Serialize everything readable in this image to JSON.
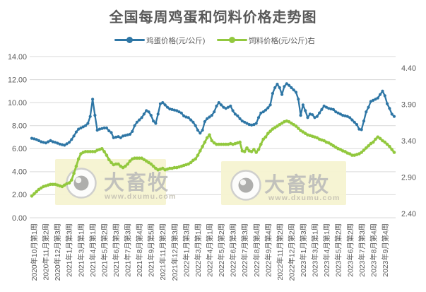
{
  "title": "全国每周鸡蛋和饲料价格走势图",
  "legend": {
    "egg_label": "鸡蛋价格(元/公斤)",
    "feed_label": "饲料价格(元/公斤)右"
  },
  "watermark": {
    "brand": "大畜牧",
    "url": "www.dxumu.com"
  },
  "colors": {
    "egg_line": "#2e76a5",
    "feed_line": "#92c83e",
    "grid": "#d9d9d9",
    "axis_text": "#595959",
    "watermark_box": "#f6f3d1",
    "watermark_text": "#bcbcba",
    "watermark_url": "#c6c2b4"
  },
  "chart_data": {
    "type": "line",
    "title": "全国每周鸡蛋和饲料价格走势图",
    "grid": "horizontal",
    "legend_position": "top",
    "left_axis": {
      "min": 0,
      "max": 14,
      "step": 2,
      "labels": [
        "0.00",
        "2.00",
        "4.00",
        "6.00",
        "8.00",
        "10.00",
        "12.00",
        "14.00"
      ]
    },
    "right_axis": {
      "min": 2.4,
      "max": 4.4,
      "step": 0.5,
      "labels": [
        "2.40",
        "2.90",
        "3.40",
        "3.90",
        "4.40"
      ]
    },
    "x_tick_labels": [
      "2020年10月第1周",
      "2020年11月第2周",
      "2020年12月第3周",
      "2021年1月第3周",
      "2021年3月第1周",
      "2021年4月第1周",
      "2021年5月第2周",
      "2021年6月第3周",
      "2021年7月第3周",
      "2021年8月第4周",
      "2021年9月第5周",
      "2021年11月第2周",
      "2021年12月第3周",
      "2022年1月第3周",
      "2022年3月第1周",
      "2022年4月第1周",
      "2022年5月第2周",
      "2022年6月第3周",
      "2022年7月第3周",
      "2022年8月第4周",
      "2022年9月第4周",
      "2022年11月第2周",
      "2022年12月第2周",
      "2023年1月第3周",
      "2023年3月第1周",
      "2023年4月第1周",
      "2023年5月第2周",
      "2023年6月第2周",
      "2023年7月第3周",
      "2023年8月第4周",
      "2023年9月第4周"
    ],
    "series": [
      {
        "name": "鸡蛋价格(元/公斤)",
        "axis": "left",
        "color": "#2e76a5",
        "values": [
          6.9,
          6.85,
          6.8,
          6.7,
          6.6,
          6.55,
          6.5,
          6.6,
          6.7,
          6.6,
          6.55,
          6.48,
          6.4,
          6.35,
          6.3,
          6.42,
          6.55,
          6.8,
          7.1,
          7.45,
          7.7,
          7.8,
          7.9,
          8.0,
          8.2,
          8.8,
          10.3,
          8.9,
          7.6,
          7.7,
          7.75,
          7.8,
          7.8,
          7.55,
          7.4,
          6.95,
          7.0,
          7.05,
          6.95,
          7.1,
          7.15,
          7.2,
          7.25,
          7.5,
          8.0,
          8.3,
          8.5,
          8.7,
          9.0,
          9.3,
          9.2,
          8.9,
          8.4,
          8.2,
          9.0,
          9.9,
          10.0,
          9.8,
          9.6,
          9.45,
          9.4,
          9.35,
          9.3,
          9.2,
          9.1,
          8.85,
          8.75,
          8.7,
          8.5,
          8.3,
          8.0,
          7.6,
          7.35,
          7.6,
          8.35,
          8.6,
          8.75,
          8.9,
          9.2,
          9.7,
          10.0,
          9.8,
          9.6,
          9.5,
          9.6,
          9.7,
          9.3,
          9.0,
          8.85,
          8.6,
          8.4,
          8.3,
          8.2,
          8.1,
          8.05,
          8.1,
          8.2,
          8.7,
          9.1,
          9.2,
          9.35,
          9.55,
          9.8,
          10.8,
          11.3,
          11.6,
          11.3,
          10.7,
          11.4,
          11.65,
          11.5,
          11.3,
          11.1,
          10.9,
          10.3,
          8.9,
          9.8,
          9.3,
          8.7,
          9.0,
          8.95,
          8.7,
          8.8,
          9.1,
          9.4,
          9.7,
          9.6,
          9.5,
          9.45,
          9.4,
          9.2,
          9.1,
          9.0,
          8.9,
          8.85,
          8.8,
          8.7,
          8.5,
          8.3,
          8.1,
          7.7,
          7.65,
          8.4,
          9.2,
          9.6,
          10.1,
          10.2,
          10.3,
          10.4,
          10.7,
          11.0,
          10.6,
          9.9,
          9.5,
          9.0,
          8.8
        ]
      },
      {
        "name": "饲料价格(元/公斤)右",
        "axis": "right",
        "color": "#92c83e",
        "values": [
          2.64,
          2.67,
          2.7,
          2.73,
          2.75,
          2.77,
          2.78,
          2.79,
          2.8,
          2.8,
          2.8,
          2.79,
          2.78,
          2.77,
          2.79,
          2.81,
          2.82,
          2.86,
          2.95,
          3.05,
          3.15,
          3.22,
          3.24,
          3.25,
          3.25,
          3.25,
          3.25,
          3.25,
          3.27,
          3.28,
          3.29,
          3.25,
          3.2,
          3.14,
          3.1,
          3.07,
          3.08,
          3.08,
          3.05,
          3.03,
          3.05,
          3.08,
          3.12,
          3.15,
          3.16,
          3.16,
          3.16,
          3.16,
          3.14,
          3.12,
          3.1,
          3.08,
          3.05,
          3.02,
          3.0,
          3.01,
          3.02,
          3.0,
          3.01,
          3.02,
          3.02,
          3.03,
          3.03,
          3.04,
          3.05,
          3.06,
          3.07,
          3.08,
          3.1,
          3.13,
          3.15,
          3.2,
          3.26,
          3.32,
          3.38,
          3.44,
          3.48,
          3.4,
          3.37,
          3.35,
          3.35,
          3.35,
          3.35,
          3.35,
          3.35,
          3.36,
          3.35,
          3.36,
          3.37,
          3.38,
          3.26,
          3.25,
          3.3,
          3.26,
          3.25,
          3.28,
          3.24,
          3.28,
          3.35,
          3.42,
          3.45,
          3.5,
          3.53,
          3.56,
          3.58,
          3.6,
          3.62,
          3.64,
          3.66,
          3.67,
          3.66,
          3.64,
          3.62,
          3.6,
          3.57,
          3.54,
          3.52,
          3.5,
          3.48,
          3.47,
          3.46,
          3.45,
          3.44,
          3.42,
          3.41,
          3.4,
          3.38,
          3.37,
          3.35,
          3.33,
          3.31,
          3.29,
          3.28,
          3.26,
          3.25,
          3.23,
          3.22,
          3.2,
          3.2,
          3.21,
          3.22,
          3.24,
          3.27,
          3.3,
          3.33,
          3.36,
          3.38,
          3.42,
          3.45,
          3.43,
          3.4,
          3.38,
          3.35,
          3.32,
          3.28,
          3.24
        ]
      }
    ]
  }
}
